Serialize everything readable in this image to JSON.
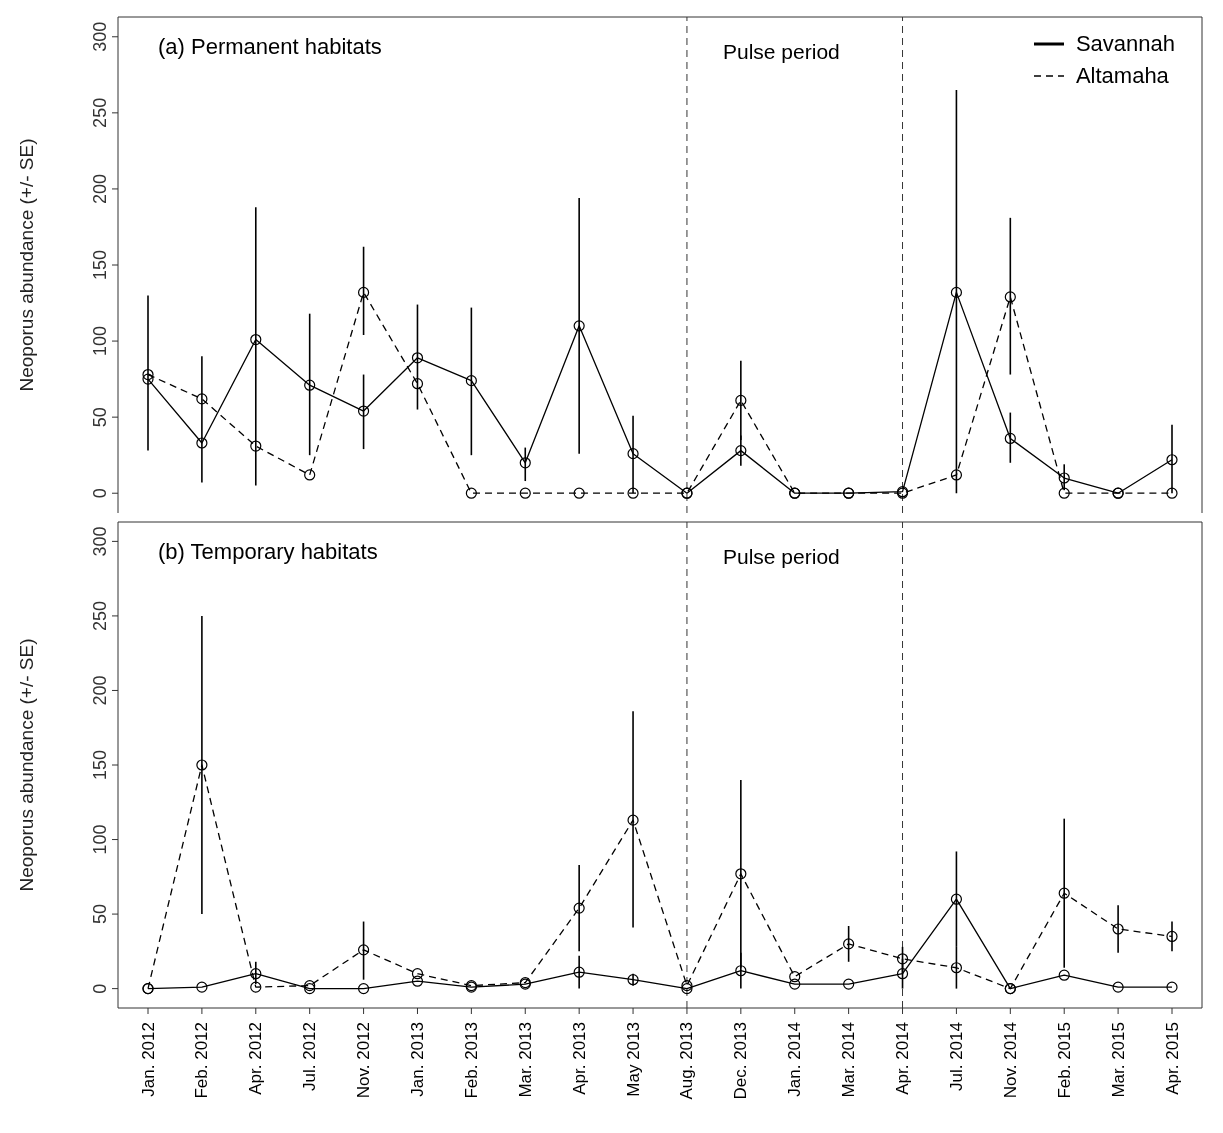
{
  "chart_data": [
    {
      "type": "line",
      "title": "(a) Permanent habitats",
      "ylabel": "Neoporus abundance (+/- SE)",
      "categories": [
        "Jan. 2012",
        "Feb. 2012",
        "Apr. 2012",
        "Jul. 2012",
        "Nov. 2012",
        "Jan. 2013",
        "Feb. 2013",
        "Mar. 2013",
        "Apr. 2013",
        "May 2013",
        "Aug. 2013",
        "Dec. 2013",
        "Jan. 2014",
        "Mar. 2014",
        "Apr. 2014",
        "Jul. 2014",
        "Nov. 2014",
        "Feb. 2015",
        "Mar. 2015",
        "Apr. 2015"
      ],
      "ylim": [
        -13,
        313
      ],
      "yticks": [
        0,
        50,
        100,
        150,
        200,
        250,
        300
      ],
      "tick_labels": "y",
      "legend": "top right",
      "marker": "circle",
      "ref_lines": [
        {
          "axis": "x",
          "value": "Aug. 2013",
          "label": null,
          "line_style": "dashed"
        },
        {
          "axis": "x",
          "value": "Apr. 2014",
          "label": null,
          "line_style": "dashed"
        }
      ],
      "annotations": [
        "Pulse period"
      ],
      "series": [
        {
          "name": "Savannah",
          "color": "#000000",
          "line_style": "solid",
          "values": [
            75,
            33,
            101,
            71,
            54,
            89,
            74,
            20,
            110,
            26,
            0,
            28,
            0,
            0,
            1,
            132,
            36,
            10,
            0,
            22
          ],
          "errors": [
            [
              28,
              130
            ],
            [
              7,
              90
            ],
            [
              5,
              188
            ],
            [
              25,
              118
            ],
            [
              29,
              78
            ],
            [
              55,
              124
            ],
            [
              25,
              122
            ],
            [
              8,
              30
            ],
            [
              26,
              194
            ],
            [
              0,
              51
            ],
            null,
            [
              18,
              38
            ],
            null,
            null,
            null,
            [
              0,
              265
            ],
            [
              20,
              53
            ],
            [
              2,
              19
            ],
            null,
            [
              0,
              45
            ]
          ]
        },
        {
          "name": "Altamaha",
          "color": "#000000",
          "line_style": "dashed",
          "values": [
            78,
            62,
            31,
            12,
            132,
            72,
            0,
            0,
            0,
            0,
            0,
            61,
            0,
            0,
            0,
            12,
            129,
            0,
            0,
            0
          ],
          "errors": [
            null,
            null,
            null,
            null,
            [
              104,
              162
            ],
            null,
            null,
            null,
            null,
            null,
            null,
            [
              35,
              87
            ],
            null,
            null,
            null,
            null,
            [
              78,
              181
            ],
            null,
            null,
            null
          ]
        }
      ]
    },
    {
      "type": "line",
      "title": "(b) Temporary habitats",
      "ylabel": "Neoporus abundance (+/- SE)",
      "categories": [
        "Jan. 2012",
        "Feb. 2012",
        "Apr. 2012",
        "Jul. 2012",
        "Nov. 2012",
        "Jan. 2013",
        "Feb. 2013",
        "Mar. 2013",
        "Apr. 2013",
        "May 2013",
        "Aug. 2013",
        "Dec. 2013",
        "Jan. 2014",
        "Mar. 2014",
        "Apr. 2014",
        "Jul. 2014",
        "Nov. 2014",
        "Feb. 2015",
        "Mar. 2015",
        "Apr. 2015"
      ],
      "ylim": [
        -13,
        313
      ],
      "yticks": [
        0,
        50,
        100,
        150,
        200,
        250,
        300
      ],
      "marker": "circle",
      "ref_lines": [
        {
          "axis": "x",
          "value": "Aug. 2013",
          "label": null,
          "line_style": "dashed"
        },
        {
          "axis": "x",
          "value": "Apr. 2014",
          "label": null,
          "line_style": "dashed"
        }
      ],
      "annotations": [
        "Pulse period"
      ],
      "series": [
        {
          "color": "#000000",
          "line_style": "solid",
          "values": [
            0,
            1,
            10,
            0,
            0,
            5,
            1,
            3,
            11,
            6,
            0,
            12,
            3,
            3,
            10,
            60,
            0,
            9,
            1,
            1
          ],
          "errors": [
            null,
            null,
            [
              3,
              18
            ],
            null,
            null,
            null,
            null,
            null,
            [
              0,
              22
            ],
            [
              2,
              10
            ],
            null,
            [
              0,
              24
            ],
            null,
            null,
            [
              0,
              20
            ],
            [
              28,
              92
            ],
            null,
            null,
            null,
            null
          ]
        },
        {
          "color": "#000000",
          "line_style": "dashed",
          "values": [
            0,
            150,
            1,
            2,
            26,
            10,
            2,
            4,
            54,
            113,
            2,
            77,
            8,
            30,
            20,
            14,
            0,
            64,
            40,
            35
          ],
          "errors": [
            null,
            [
              50,
              250
            ],
            null,
            null,
            [
              6,
              45
            ],
            null,
            null,
            null,
            [
              25,
              83
            ],
            [
              41,
              186
            ],
            null,
            [
              14,
              140
            ],
            null,
            [
              18,
              42
            ],
            [
              10,
              28
            ],
            [
              0,
              28
            ],
            null,
            [
              14,
              114
            ],
            [
              24,
              56
            ],
            [
              25,
              45
            ]
          ]
        }
      ]
    }
  ]
}
